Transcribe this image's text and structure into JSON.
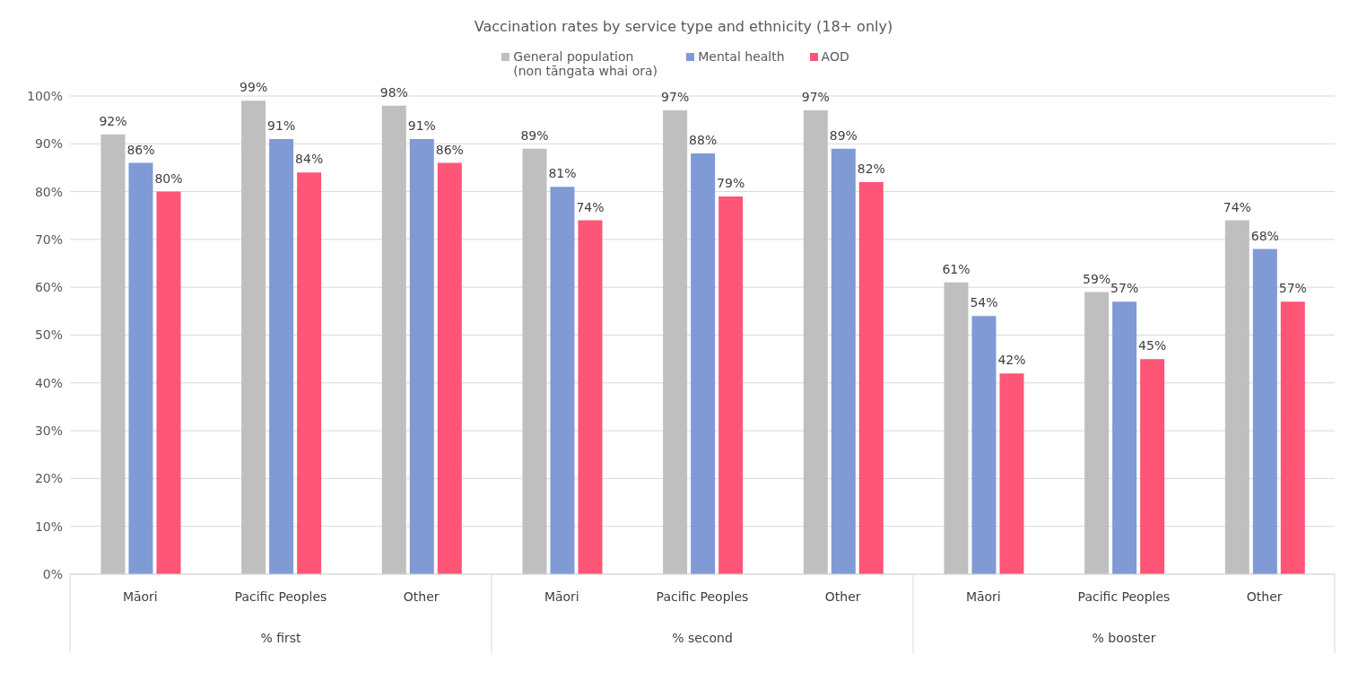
{
  "chart_data": {
    "type": "bar",
    "title": "Vaccination rates by service type and ethnicity (18+ only)",
    "categories": [
      "Māori",
      "Pacific Peoples",
      "Other",
      "Māori",
      "Pacific Peoples",
      "Other",
      "Māori",
      "Pacific Peoples",
      "Other"
    ],
    "annotations": [
      "% first",
      "% second",
      "% booster"
    ],
    "series": [
      {
        "name": "General population (non tāngata whai ora)",
        "color": "#bfbfbf",
        "values": [
          92,
          99,
          98,
          89,
          97,
          97,
          61,
          59,
          74
        ],
        "value_labels": [
          "92%",
          "99%",
          "98%",
          "89%",
          "97%",
          "97%",
          "61%",
          "59%",
          "74%"
        ]
      },
      {
        "name": "Mental health",
        "color": "#7f9ad5",
        "values": [
          86,
          91,
          91,
          81,
          88,
          89,
          54,
          57,
          68
        ],
        "value_labels": [
          "86%",
          "91%",
          "91%",
          "81%",
          "88%",
          "89%",
          "54%",
          "57%",
          "68%"
        ]
      },
      {
        "name": "AOD",
        "color": "#ff5577",
        "values": [
          80,
          84,
          86,
          74,
          79,
          82,
          42,
          45,
          57
        ],
        "value_labels": [
          "80%",
          "84%",
          "86%",
          "74%",
          "79%",
          "82%",
          "42%",
          "45%",
          "57%"
        ]
      }
    ],
    "ylim": [
      0,
      100
    ],
    "yticks": [
      {
        "value": 0,
        "label": "0%"
      },
      {
        "value": 10,
        "label": "10%"
      },
      {
        "value": 20,
        "label": "20%"
      },
      {
        "value": 30,
        "label": "30%"
      },
      {
        "value": 40,
        "label": "40%"
      },
      {
        "value": 50,
        "label": "50%"
      },
      {
        "value": 60,
        "label": "60%"
      },
      {
        "value": 70,
        "label": "70%"
      },
      {
        "value": 80,
        "label": "80%"
      },
      {
        "value": 90,
        "label": "90%"
      },
      {
        "value": 100,
        "label": "100%"
      }
    ],
    "grid": "y",
    "legend": "top"
  }
}
